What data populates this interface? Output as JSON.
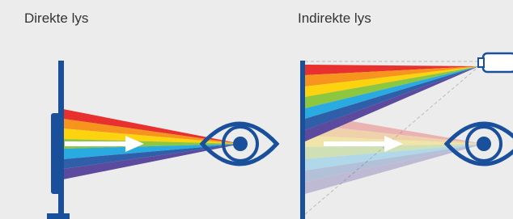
{
  "panels": [
    {
      "title": "Direkte lys"
    },
    {
      "title": "Indirekte lys"
    }
  ]
}
